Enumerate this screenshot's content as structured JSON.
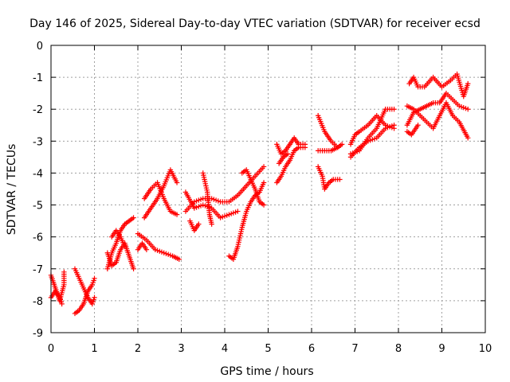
{
  "chart_data": {
    "type": "scatter",
    "title": "Day 146 of 2025, Sidereal Day-to-day VTEC variation (SDTVAR) for receiver ecsd",
    "xlabel": "GPS time / hours",
    "ylabel": "SDTVAR / TECUs",
    "xlim": [
      0,
      10
    ],
    "ylim": [
      -9,
      0
    ],
    "xticks": [
      "0",
      "1",
      "2",
      "3",
      "4",
      "5",
      "6",
      "7",
      "8",
      "9",
      "10"
    ],
    "yticks": [
      "0",
      "-1",
      "-2",
      "-3",
      "-4",
      "-5",
      "-6",
      "-7",
      "-8",
      "-9"
    ],
    "grid": true,
    "marker": "plus",
    "color": "#ff0000",
    "series_tracks": [
      [
        [
          0.0,
          -7.2
        ],
        [
          0.1,
          -7.6
        ],
        [
          0.2,
          -8.0
        ],
        [
          0.3,
          -7.5
        ],
        [
          0.3,
          -7.1
        ]
      ],
      [
        [
          0.0,
          -7.9
        ],
        [
          0.1,
          -7.7
        ],
        [
          0.2,
          -7.9
        ],
        [
          0.25,
          -8.1
        ]
      ],
      [
        [
          0.55,
          -7.0
        ],
        [
          0.65,
          -7.3
        ],
        [
          0.75,
          -7.6
        ],
        [
          0.85,
          -7.9
        ],
        [
          0.95,
          -8.1
        ],
        [
          1.0,
          -7.9
        ]
      ],
      [
        [
          0.55,
          -8.4
        ],
        [
          0.65,
          -8.3
        ],
        [
          0.75,
          -8.1
        ],
        [
          0.85,
          -7.7
        ],
        [
          0.95,
          -7.5
        ],
        [
          1.0,
          -7.3
        ]
      ],
      [
        [
          1.3,
          -7.0
        ],
        [
          1.4,
          -6.5
        ],
        [
          1.5,
          -6.2
        ],
        [
          1.6,
          -5.8
        ],
        [
          1.7,
          -5.6
        ],
        [
          1.8,
          -5.5
        ],
        [
          1.9,
          -5.4
        ]
      ],
      [
        [
          1.3,
          -6.5
        ],
        [
          1.4,
          -6.9
        ],
        [
          1.5,
          -6.8
        ],
        [
          1.6,
          -6.4
        ],
        [
          1.7,
          -6.2
        ],
        [
          1.8,
          -6.6
        ],
        [
          1.9,
          -7.0
        ]
      ],
      [
        [
          1.4,
          -6.0
        ],
        [
          1.5,
          -5.8
        ],
        [
          1.6,
          -6.0
        ],
        [
          1.7,
          -6.3
        ]
      ],
      [
        [
          2.0,
          -5.9
        ],
        [
          2.2,
          -6.1
        ],
        [
          2.4,
          -6.4
        ],
        [
          2.6,
          -6.5
        ],
        [
          2.8,
          -6.6
        ],
        [
          2.95,
          -6.7
        ]
      ],
      [
        [
          2.15,
          -5.4
        ],
        [
          2.3,
          -5.1
        ],
        [
          2.45,
          -4.8
        ],
        [
          2.6,
          -4.4
        ],
        [
          2.75,
          -3.9
        ],
        [
          2.9,
          -4.3
        ]
      ],
      [
        [
          2.15,
          -4.8
        ],
        [
          2.3,
          -4.5
        ],
        [
          2.45,
          -4.3
        ],
        [
          2.6,
          -4.8
        ],
        [
          2.75,
          -5.2
        ],
        [
          2.9,
          -5.3
        ]
      ],
      [
        [
          2.0,
          -6.4
        ],
        [
          2.1,
          -6.2
        ],
        [
          2.2,
          -6.4
        ]
      ],
      [
        [
          3.1,
          -4.6
        ],
        [
          3.3,
          -5.1
        ],
        [
          3.5,
          -5.0
        ],
        [
          3.7,
          -5.1
        ],
        [
          3.9,
          -5.4
        ],
        [
          4.1,
          -5.3
        ],
        [
          4.3,
          -5.2
        ]
      ],
      [
        [
          3.1,
          -5.2
        ],
        [
          3.3,
          -4.9
        ],
        [
          3.5,
          -4.8
        ],
        [
          3.7,
          -4.8
        ],
        [
          3.9,
          -4.9
        ],
        [
          4.1,
          -4.9
        ],
        [
          4.3,
          -4.7
        ],
        [
          4.5,
          -4.4
        ],
        [
          4.7,
          -4.1
        ],
        [
          4.9,
          -3.8
        ]
      ],
      [
        [
          3.5,
          -4.0
        ],
        [
          3.6,
          -4.6
        ],
        [
          3.65,
          -5.3
        ],
        [
          3.7,
          -5.6
        ]
      ],
      [
        [
          3.2,
          -5.5
        ],
        [
          3.3,
          -5.8
        ],
        [
          3.4,
          -5.6
        ]
      ],
      [
        [
          4.1,
          -6.6
        ],
        [
          4.2,
          -6.7
        ],
        [
          4.3,
          -6.3
        ],
        [
          4.4,
          -5.7
        ],
        [
          4.5,
          -5.2
        ],
        [
          4.6,
          -4.9
        ],
        [
          4.7,
          -4.7
        ],
        [
          4.8,
          -4.6
        ],
        [
          4.9,
          -4.3
        ]
      ],
      [
        [
          4.4,
          -4.0
        ],
        [
          4.5,
          -3.9
        ],
        [
          4.6,
          -4.2
        ],
        [
          4.7,
          -4.5
        ],
        [
          4.8,
          -4.9
        ],
        [
          4.9,
          -5.0
        ]
      ],
      [
        [
          5.2,
          -3.1
        ],
        [
          5.3,
          -3.4
        ],
        [
          5.4,
          -3.3
        ],
        [
          5.5,
          -3.1
        ],
        [
          5.6,
          -2.9
        ],
        [
          5.7,
          -3.1
        ],
        [
          5.85,
          -3.1
        ]
      ],
      [
        [
          5.2,
          -4.3
        ],
        [
          5.3,
          -4.1
        ],
        [
          5.4,
          -3.8
        ],
        [
          5.5,
          -3.6
        ],
        [
          5.6,
          -3.3
        ],
        [
          5.7,
          -3.2
        ],
        [
          5.85,
          -3.2
        ]
      ],
      [
        [
          5.25,
          -3.7
        ],
        [
          5.35,
          -3.5
        ],
        [
          5.45,
          -3.4
        ]
      ],
      [
        [
          6.15,
          -2.2
        ],
        [
          6.3,
          -2.7
        ],
        [
          6.45,
          -3.0
        ],
        [
          6.6,
          -3.2
        ],
        [
          6.7,
          -3.1
        ]
      ],
      [
        [
          6.15,
          -3.3
        ],
        [
          6.3,
          -3.3
        ],
        [
          6.45,
          -3.3
        ],
        [
          6.6,
          -3.2
        ]
      ],
      [
        [
          6.15,
          -3.8
        ],
        [
          6.25,
          -4.1
        ],
        [
          6.3,
          -4.5
        ],
        [
          6.4,
          -4.3
        ],
        [
          6.5,
          -4.2
        ],
        [
          6.65,
          -4.2
        ]
      ],
      [
        [
          6.9,
          -3.4
        ],
        [
          7.1,
          -3.3
        ],
        [
          7.3,
          -2.9
        ],
        [
          7.5,
          -2.6
        ],
        [
          7.7,
          -2.0
        ],
        [
          7.9,
          -2.0
        ]
      ],
      [
        [
          6.9,
          -3.5
        ],
        [
          7.1,
          -3.2
        ],
        [
          7.3,
          -3.0
        ],
        [
          7.5,
          -2.9
        ],
        [
          7.7,
          -2.6
        ],
        [
          7.9,
          -2.5
        ]
      ],
      [
        [
          6.9,
          -3.1
        ],
        [
          7.0,
          -2.8
        ],
        [
          7.1,
          -2.7
        ],
        [
          7.3,
          -2.5
        ],
        [
          7.5,
          -2.2
        ],
        [
          7.7,
          -2.5
        ],
        [
          7.9,
          -2.6
        ]
      ],
      [
        [
          8.2,
          -2.5
        ],
        [
          8.35,
          -2.1
        ],
        [
          8.5,
          -2.0
        ],
        [
          8.65,
          -1.9
        ],
        [
          8.8,
          -1.8
        ],
        [
          8.95,
          -1.8
        ],
        [
          9.1,
          -1.5
        ],
        [
          9.25,
          -1.7
        ],
        [
          9.4,
          -1.9
        ],
        [
          9.6,
          -2.0
        ]
      ],
      [
        [
          8.2,
          -1.9
        ],
        [
          8.35,
          -2.0
        ],
        [
          8.5,
          -2.2
        ],
        [
          8.65,
          -2.4
        ],
        [
          8.8,
          -2.6
        ],
        [
          8.95,
          -2.2
        ],
        [
          9.1,
          -1.8
        ],
        [
          9.25,
          -2.2
        ],
        [
          9.4,
          -2.4
        ],
        [
          9.6,
          -2.9
        ]
      ],
      [
        [
          8.25,
          -1.2
        ],
        [
          8.35,
          -1.0
        ],
        [
          8.45,
          -1.3
        ],
        [
          8.6,
          -1.3
        ],
        [
          8.8,
          -1.0
        ],
        [
          9.0,
          -1.3
        ],
        [
          9.2,
          -1.1
        ],
        [
          9.35,
          -0.9
        ],
        [
          9.5,
          -1.6
        ],
        [
          9.6,
          -1.2
        ]
      ],
      [
        [
          8.2,
          -2.7
        ],
        [
          8.3,
          -2.8
        ],
        [
          8.45,
          -2.5
        ]
      ]
    ]
  }
}
